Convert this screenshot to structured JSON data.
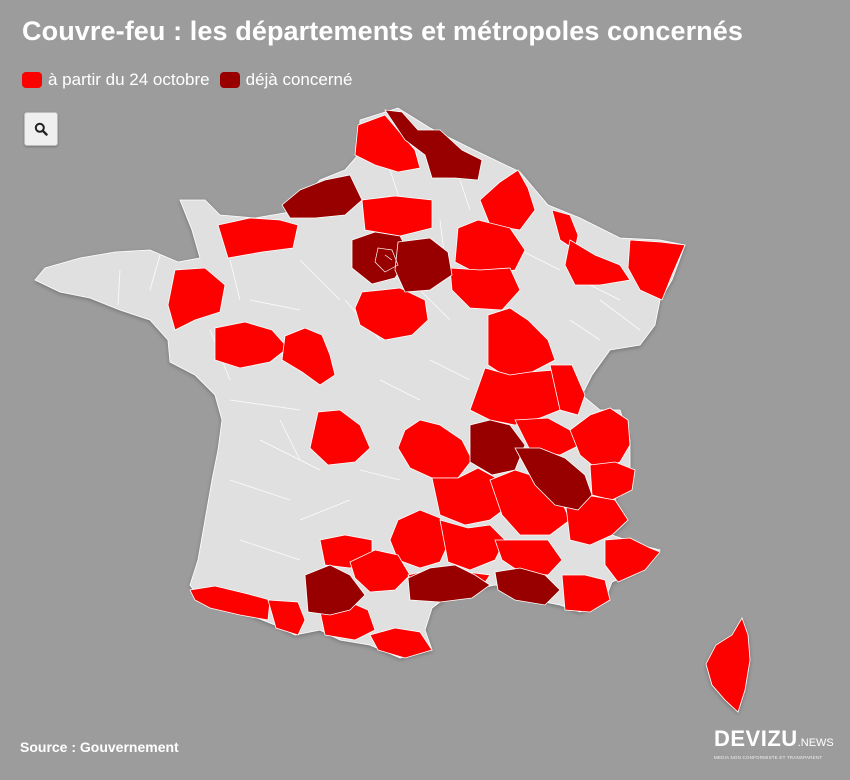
{
  "title": "Couvre-feu : les départements et métropoles concernés",
  "legend": [
    {
      "label": "à partir du 24 octobre",
      "color": "#fd0101"
    },
    {
      "label": "déjà concerné",
      "color": "#980000"
    }
  ],
  "zoom": {
    "icon": "search-icon"
  },
  "colors": {
    "background": "#9d9c9d",
    "land": "#e0e0e0",
    "red": "#fd0101",
    "dark_red": "#980000"
  },
  "source": "Source : Gouvernement",
  "brand": {
    "name": "DEVIZU",
    "suffix": ".NEWS",
    "tagline": "MEDIA NON CONFORMISTE ET TRANSPARENT"
  }
}
